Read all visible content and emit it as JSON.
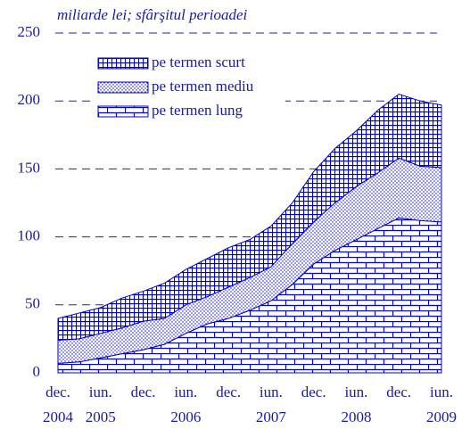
{
  "chart_data": {
    "type": "stacked_area",
    "title": "miliarde lei; sfârşitul perioadei",
    "categories": [
      "dec.",
      null,
      "iun.",
      null,
      "dec.",
      null,
      "iun.",
      null,
      "dec.",
      null,
      "iun.",
      null,
      "dec.",
      null,
      "iun.",
      null,
      "dec.",
      null,
      "iun."
    ],
    "category_years": [
      "2004",
      null,
      "2005",
      null,
      null,
      null,
      "2006",
      null,
      null,
      null,
      "2007",
      null,
      null,
      null,
      "2008",
      null,
      null,
      null,
      "2009"
    ],
    "series": [
      {
        "name": "pe termen scurt",
        "color": "#0000cc",
        "pattern": "grid",
        "values": [
          16,
          19,
          19,
          22,
          22,
          26,
          26,
          28,
          29,
          28,
          30,
          30,
          37,
          40,
          41,
          46,
          47,
          48,
          46
        ]
      },
      {
        "name": "pe termen mediu",
        "color": "#0000cc",
        "pattern": "dots",
        "values": [
          17,
          17,
          18,
          19,
          21,
          19,
          21,
          20,
          23,
          24,
          25,
          30,
          31,
          35,
          39,
          41,
          44,
          40,
          40
        ]
      },
      {
        "name": "pe termen lung",
        "color": "#0000cc",
        "pattern": "brick",
        "values": [
          7,
          8,
          11,
          14,
          17,
          21,
          29,
          36,
          40,
          46,
          53,
          65,
          80,
          90,
          98,
          106,
          114,
          112,
          111
        ]
      }
    ],
    "ylim": [
      0,
      250
    ],
    "yticks": [
      0,
      50,
      100,
      150,
      200,
      250
    ],
    "grid": true
  }
}
